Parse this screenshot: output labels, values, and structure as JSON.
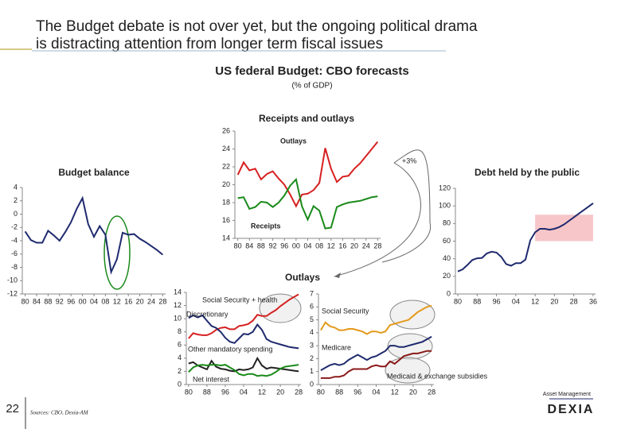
{
  "slide": {
    "title_line1": "The Budget debate is not over yet, but the ongoing political drama",
    "title_line2": "is distracting attention from longer term fiscal issues",
    "heading": "US federal Budget: CBO forecasts",
    "subheading": "(% of GDP)",
    "outlays_heading": "Outlays",
    "page_number": "22",
    "sources": "Sources: CBO, Dexia-AM",
    "logo_top": "Asset Management",
    "logo": "DEXIA"
  },
  "chart_data": [
    {
      "type": "line",
      "title": "Receipts and outlays",
      "x": [
        1980,
        1982,
        1984,
        1986,
        1988,
        1990,
        1992,
        1994,
        1996,
        1998,
        2000,
        2002,
        2004,
        2006,
        2008,
        2010,
        2012,
        2014,
        2016,
        2018,
        2020,
        2022,
        2024,
        2026,
        2028
      ],
      "xlim": [
        1979,
        2029
      ],
      "xticks": [
        {
          "value": 1980,
          "label": "80"
        },
        {
          "value": 1984,
          "label": "84"
        },
        {
          "value": 1988,
          "label": "88"
        },
        {
          "value": 1992,
          "label": "92"
        },
        {
          "value": 1996,
          "label": "96"
        },
        {
          "value": 2000,
          "label": "00"
        },
        {
          "value": 2004,
          "label": "04"
        },
        {
          "value": 2008,
          "label": "08"
        },
        {
          "value": 2012,
          "label": "12"
        },
        {
          "value": 2016,
          "label": "16"
        },
        {
          "value": 2020,
          "label": "20"
        },
        {
          "value": 2024,
          "label": "24"
        },
        {
          "value": 2028,
          "label": "28"
        }
      ],
      "ylim": [
        14,
        26
      ],
      "yticks": [
        14,
        16,
        18,
        20,
        22,
        24,
        26
      ],
      "series": [
        {
          "name": "Outlays",
          "color": "#d62020",
          "values": [
            21.1,
            22.5,
            21.6,
            21.8,
            20.6,
            21.2,
            21.5,
            20.7,
            20.0,
            18.9,
            17.6,
            18.9,
            19.0,
            19.4,
            20.2,
            24.1,
            21.8,
            20.3,
            20.9,
            21.0,
            21.8,
            22.4,
            23.2,
            24.0,
            24.8
          ]
        },
        {
          "name": "Receipts",
          "color": "#1a8a1a",
          "values": [
            18.5,
            18.6,
            17.3,
            17.5,
            18.1,
            18.0,
            17.5,
            18.0,
            18.8,
            19.9,
            20.6,
            17.6,
            16.1,
            17.6,
            17.1,
            15.1,
            15.2,
            17.5,
            17.8,
            18.0,
            18.1,
            18.2,
            18.4,
            18.6,
            18.7
          ]
        }
      ],
      "annotations": [
        "+3%"
      ]
    },
    {
      "type": "line",
      "title": "Budget balance",
      "x": [
        1980,
        1982,
        1984,
        1986,
        1988,
        1990,
        1992,
        1994,
        1996,
        1998,
        2000,
        2002,
        2004,
        2006,
        2008,
        2010,
        2012,
        2014,
        2016,
        2018,
        2020,
        2022,
        2024,
        2026,
        2028
      ],
      "xlim": [
        1979,
        2029
      ],
      "xticks": [
        {
          "value": 1980,
          "label": "80"
        },
        {
          "value": 1984,
          "label": "84"
        },
        {
          "value": 1988,
          "label": "88"
        },
        {
          "value": 1992,
          "label": "92"
        },
        {
          "value": 1996,
          "label": "96"
        },
        {
          "value": 2000,
          "label": "00"
        },
        {
          "value": 2004,
          "label": "04"
        },
        {
          "value": 2008,
          "label": "08"
        },
        {
          "value": 2012,
          "label": "12"
        },
        {
          "value": 2016,
          "label": "16"
        },
        {
          "value": 2020,
          "label": "20"
        },
        {
          "value": 2024,
          "label": "24"
        },
        {
          "value": 2028,
          "label": "28"
        }
      ],
      "ylim": [
        -12,
        4
      ],
      "yticks": [
        4,
        2,
        0,
        -2,
        -4,
        -6,
        -8,
        -10,
        -12
      ],
      "series": [
        {
          "color": "#1f2a6e",
          "values": [
            -2.6,
            -3.9,
            -4.3,
            -4.3,
            -2.5,
            -3.2,
            -4.0,
            -2.7,
            -1.2,
            0.8,
            2.4,
            -1.5,
            -3.4,
            -1.8,
            -3.1,
            -8.7,
            -6.8,
            -2.8,
            -3.1,
            -3.0,
            -3.7,
            -4.2,
            -4.8,
            -5.4,
            -6.1
          ]
        }
      ]
    },
    {
      "type": "line",
      "title": "Debt held by the public",
      "x": [
        1980,
        1982,
        1984,
        1986,
        1988,
        1990,
        1992,
        1994,
        1996,
        1998,
        2000,
        2002,
        2004,
        2006,
        2008,
        2010,
        2012,
        2014,
        2016,
        2018,
        2020,
        2022,
        2024,
        2026,
        2028,
        2030,
        2032,
        2034,
        2036
      ],
      "xlim": [
        1979,
        2037
      ],
      "xticks": [
        {
          "value": 1980,
          "label": "80"
        },
        {
          "value": 1988,
          "label": "88"
        },
        {
          "value": 1996,
          "label": "96"
        },
        {
          "value": 2004,
          "label": "04"
        },
        {
          "value": 2012,
          "label": "12"
        },
        {
          "value": 2020,
          "label": "20"
        },
        {
          "value": 2028,
          "label": "28"
        },
        {
          "value": 2036,
          "label": "36"
        }
      ],
      "ylim": [
        0,
        120
      ],
      "yticks": [
        0,
        20,
        40,
        60,
        80,
        100,
        120
      ],
      "shaded_region": {
        "x": [
          2012,
          2036
        ],
        "y": [
          60,
          90
        ],
        "color": "#f7c6c9"
      },
      "series": [
        {
          "color": "#1f2a6e",
          "values": [
            25.5,
            28,
            33,
            38.5,
            40.5,
            41,
            46,
            48,
            47,
            42,
            34,
            32,
            35,
            35,
            39,
            61,
            70,
            74,
            74,
            73,
            74,
            76,
            79,
            83,
            87,
            91,
            95,
            99,
            103
          ]
        }
      ]
    },
    {
      "type": "line",
      "x": [
        1980,
        1982,
        1984,
        1986,
        1988,
        1990,
        1992,
        1994,
        1996,
        1998,
        2000,
        2002,
        2004,
        2006,
        2008,
        2010,
        2012,
        2014,
        2016,
        2018,
        2020,
        2022,
        2024,
        2026,
        2028
      ],
      "xlim": [
        1979,
        2029
      ],
      "xticks": [
        {
          "value": 1980,
          "label": "80"
        },
        {
          "value": 1988,
          "label": "88"
        },
        {
          "value": 1996,
          "label": "96"
        },
        {
          "value": 2004,
          "label": "04"
        },
        {
          "value": 2012,
          "label": "12"
        },
        {
          "value": 2020,
          "label": "20"
        },
        {
          "value": 2028,
          "label": "28"
        }
      ],
      "ylim": [
        0,
        14
      ],
      "yticks": [
        0,
        2,
        4,
        6,
        8,
        10,
        12,
        14
      ],
      "series": [
        {
          "name": "Social Security + health",
          "color": "#d62020",
          "values": [
            7.0,
            7.8,
            7.6,
            7.5,
            7.5,
            7.8,
            8.3,
            8.6,
            8.7,
            8.4,
            8.4,
            8.9,
            9.0,
            9.2,
            9.7,
            10.6,
            10.4,
            10.4,
            10.9,
            11.3,
            11.9,
            12.4,
            12.9,
            13.3,
            13.7
          ]
        },
        {
          "name": "Discretionary",
          "color": "#1f2a6e",
          "values": [
            10.1,
            10.5,
            10.2,
            10.5,
            9.7,
            8.9,
            8.6,
            8.0,
            7.1,
            6.5,
            6.3,
            7.0,
            7.7,
            7.6,
            8.0,
            9.1,
            8.3,
            6.9,
            6.5,
            6.3,
            6.1,
            5.9,
            5.7,
            5.6,
            5.5
          ]
        },
        {
          "name": "Other mandatory spending",
          "color": "#222222",
          "values": [
            3.2,
            3.4,
            2.9,
            2.6,
            2.3,
            3.6,
            2.7,
            2.4,
            2.3,
            2.1,
            2.0,
            2.3,
            2.2,
            2.3,
            2.6,
            4.0,
            2.9,
            2.4,
            2.6,
            2.5,
            2.4,
            2.3,
            2.2,
            2.1,
            2.0
          ]
        },
        {
          "name": "Net interest",
          "color": "#1a8a1a",
          "values": [
            1.9,
            2.6,
            2.9,
            3.0,
            2.9,
            3.0,
            3.0,
            2.9,
            3.0,
            2.6,
            2.2,
            1.6,
            1.4,
            1.6,
            1.6,
            1.3,
            1.4,
            1.3,
            1.5,
            1.9,
            2.4,
            2.7,
            2.8,
            2.9,
            3.0
          ]
        }
      ]
    },
    {
      "type": "line",
      "x": [
        1980,
        1982,
        1984,
        1986,
        1988,
        1990,
        1992,
        1994,
        1996,
        1998,
        2000,
        2002,
        2004,
        2006,
        2008,
        2010,
        2012,
        2014,
        2016,
        2018,
        2020,
        2022,
        2024,
        2026,
        2028
      ],
      "xlim": [
        1979,
        2029
      ],
      "xticks": [
        {
          "value": 1980,
          "label": "80"
        },
        {
          "value": 1988,
          "label": "88"
        },
        {
          "value": 1996,
          "label": "96"
        },
        {
          "value": 2004,
          "label": "04"
        },
        {
          "value": 2012,
          "label": "12"
        },
        {
          "value": 2020,
          "label": "20"
        },
        {
          "value": 2028,
          "label": "28"
        }
      ],
      "ylim": [
        0,
        7
      ],
      "yticks": [
        0,
        1,
        2,
        3,
        4,
        5,
        6,
        7
      ],
      "series": [
        {
          "name": "Social Security",
          "color": "#e39a1a",
          "values": [
            4.2,
            4.8,
            4.5,
            4.4,
            4.2,
            4.2,
            4.3,
            4.3,
            4.2,
            4.1,
            3.9,
            4.1,
            4.1,
            4.0,
            4.1,
            4.6,
            4.7,
            4.8,
            4.9,
            5.0,
            5.3,
            5.6,
            5.8,
            6.0,
            6.1
          ]
        },
        {
          "name": "Medicare",
          "color": "#1f2a6e",
          "values": [
            1.1,
            1.3,
            1.5,
            1.6,
            1.5,
            1.6,
            1.9,
            2.1,
            2.3,
            2.1,
            1.9,
            2.1,
            2.2,
            2.4,
            2.6,
            3.0,
            3.0,
            2.9,
            2.9,
            3.0,
            3.1,
            3.2,
            3.3,
            3.5,
            3.7
          ]
        },
        {
          "name": "Medicaid & exchange subsidies",
          "color": "#8b1a1a",
          "values": [
            0.5,
            0.5,
            0.5,
            0.6,
            0.6,
            0.7,
            1.0,
            1.2,
            1.2,
            1.2,
            1.2,
            1.4,
            1.5,
            1.4,
            1.4,
            1.8,
            1.6,
            1.9,
            2.2,
            2.3,
            2.4,
            2.4,
            2.5,
            2.6,
            2.6
          ]
        }
      ]
    }
  ]
}
